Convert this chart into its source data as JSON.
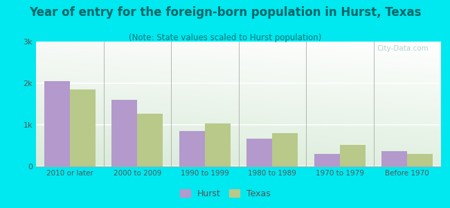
{
  "title": "Year of entry for the foreign-born population in Hurst, Texas",
  "subtitle": "(Note: State values scaled to Hurst population)",
  "categories": [
    "2010 or later",
    "2000 to 2009",
    "1990 to 1999",
    "1980 to 1989",
    "1970 to 1979",
    "Before 1970"
  ],
  "hurst_values": [
    2050,
    1600,
    850,
    670,
    300,
    370
  ],
  "texas_values": [
    1850,
    1270,
    1040,
    800,
    510,
    300
  ],
  "hurst_color": "#b399cc",
  "texas_color": "#b8c98a",
  "background_outer": "#00e8f0",
  "ylim": [
    0,
    3000
  ],
  "yticks": [
    0,
    1000,
    2000,
    3000
  ],
  "ytick_labels": [
    "0",
    "1k",
    "2k",
    "3k"
  ],
  "title_fontsize": 12,
  "subtitle_fontsize": 8.5,
  "legend_labels": [
    "Hurst",
    "Texas"
  ],
  "bar_width": 0.38,
  "watermark": "City-Data.com"
}
